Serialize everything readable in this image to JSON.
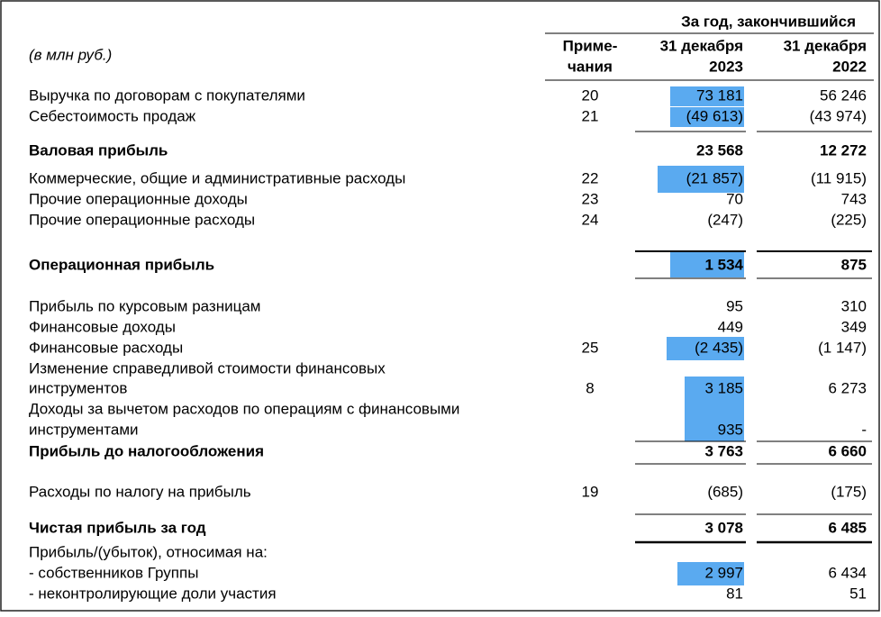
{
  "header": {
    "period": "За год, закончившийся",
    "units": "(в млн руб.)",
    "notes": [
      "Приме-",
      "чания"
    ],
    "col_2023": [
      "31 декабря",
      "2023"
    ],
    "col_2022": [
      "31 декабря",
      "2022"
    ]
  },
  "table": {
    "rows": [
      {
        "label": [
          "Выручка по договорам с покупателями"
        ],
        "note": "20",
        "v2023": "73 181",
        "v2022": "56 246",
        "highlight": true
      },
      {
        "label": [
          "Себестоимость продаж"
        ],
        "note": "21",
        "v2023": "(49 613)",
        "v2022": "(43 974)",
        "highlight": true
      },
      {
        "label": [
          "Валовая прибыль"
        ],
        "v2023": "23 568",
        "v2022": "12 272",
        "bold": true
      },
      {
        "label": [
          "Коммерческие, общие и административные расходы"
        ],
        "note": "22",
        "v2023": "(21 857)",
        "v2022": "(11 915)",
        "highlight": true
      },
      {
        "label": [
          "Прочие операционные доходы"
        ],
        "note": "23",
        "v2023": "70",
        "v2022": "743"
      },
      {
        "label": [
          "Прочие операционные расходы"
        ],
        "note": "24",
        "v2023": "(247)",
        "v2022": "(225)"
      },
      {
        "label": [
          "Операционная прибыль"
        ],
        "v2023": "1 534",
        "v2022": "875",
        "bold": true,
        "highlight": true
      },
      {
        "label": [
          "Прибыль по курсовым разницам"
        ],
        "v2023": "95",
        "v2022": "310"
      },
      {
        "label": [
          "Финансовые доходы"
        ],
        "v2023": "449",
        "v2022": "349"
      },
      {
        "label": [
          "Финансовые расходы"
        ],
        "note": "25",
        "v2023": "(2 435)",
        "v2022": "(1 147)",
        "highlight": true
      },
      {
        "label": [
          "Изменение справедливой стоимости финансовых",
          "инструментов"
        ],
        "note": "8",
        "v2023": "3 185",
        "v2022": "6 273",
        "highlight": true
      },
      {
        "label": [
          "Доходы за вычетом расходов по операциям с финансовыми",
          "инструментами"
        ],
        "v2023": "935",
        "v2022": "-",
        "highlight": true
      },
      {
        "label": [
          "Прибыль до налогообложения"
        ],
        "v2023": "3 763",
        "v2022": "6 660",
        "bold": true
      },
      {
        "label": [
          "Расходы по налогу на прибыль"
        ],
        "note": "19",
        "v2023": "(685)",
        "v2022": "(175)"
      },
      {
        "label": [
          "Чистая прибыль за год"
        ],
        "v2023": "3 078",
        "v2022": "6 485",
        "bold": true
      },
      {
        "label": [
          "Прибыль/(убыток), относимая на:"
        ]
      },
      {
        "label": [
          "- собственников Группы"
        ],
        "v2023": "2 997",
        "v2022": "6 434",
        "highlight": true
      },
      {
        "label": [
          "- неконтролирующие доли участия"
        ],
        "v2023": "81",
        "v2022": "51"
      }
    ]
  }
}
